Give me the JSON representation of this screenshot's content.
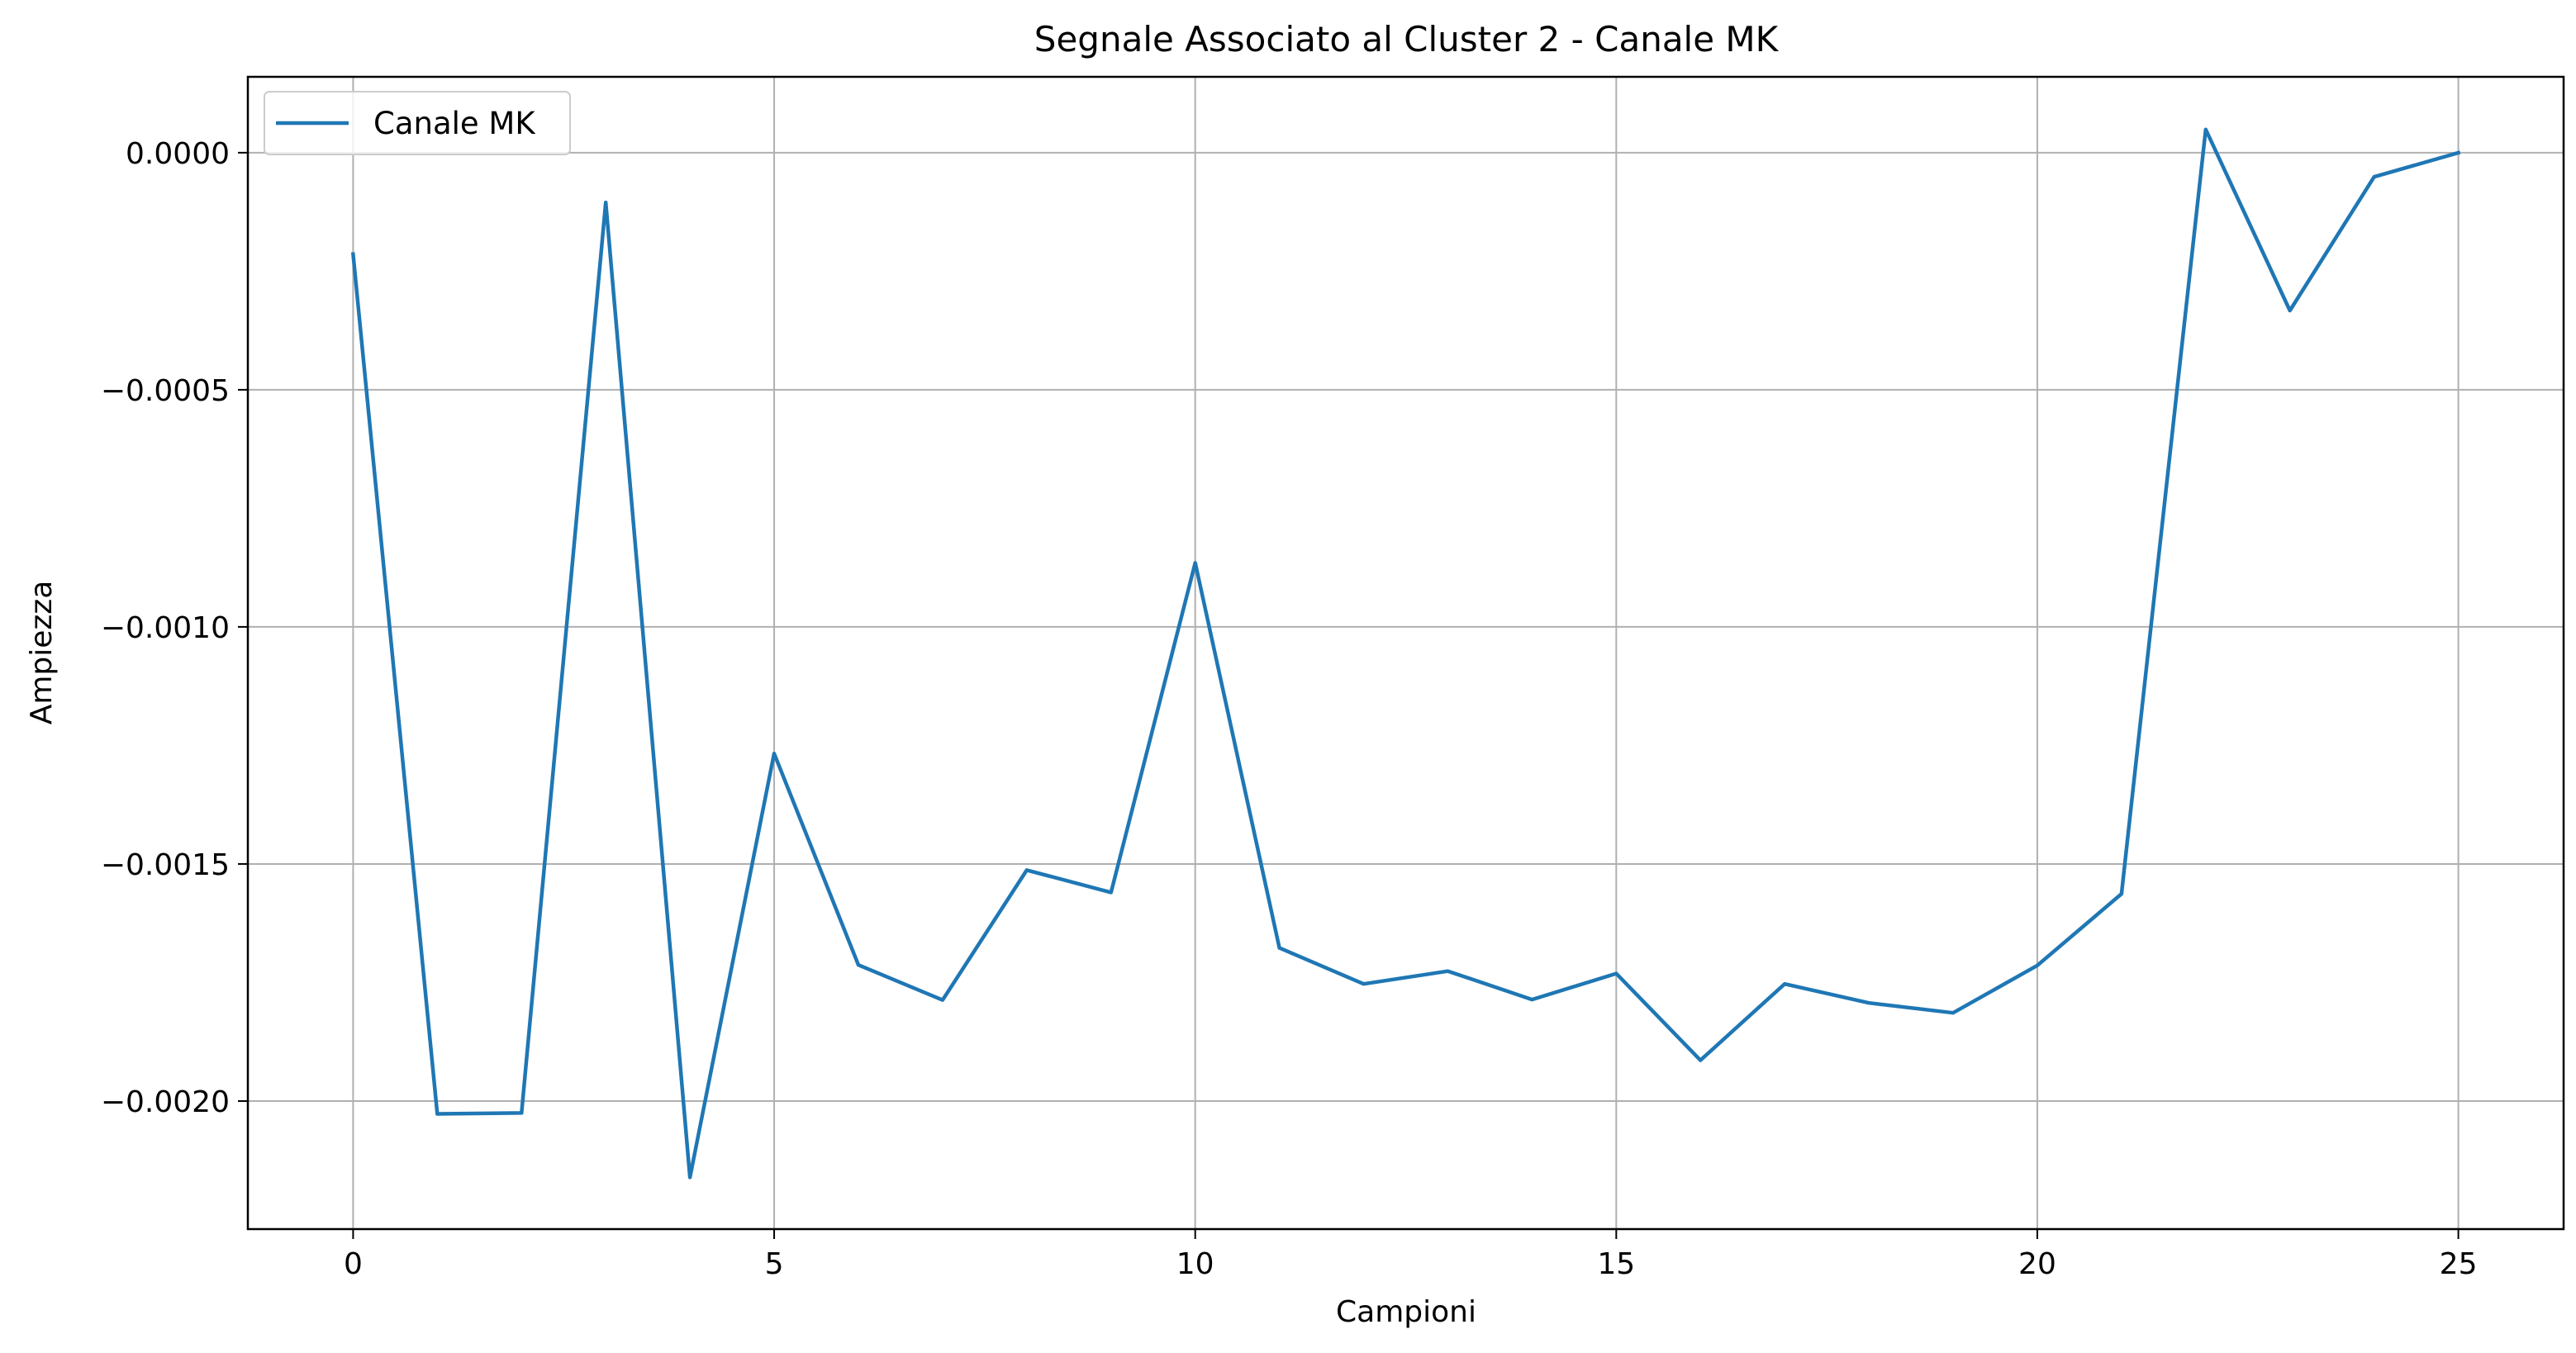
{
  "chart_data": {
    "type": "line",
    "title": "Segnale Associato al Cluster 2 - Canale MK",
    "xlabel": "Campioni",
    "ylabel": "Ampiezza",
    "xlim": [
      -1.25,
      26.25
    ],
    "ylim": [
      -0.00227,
      0.00016
    ],
    "xticks": [
      0,
      5,
      10,
      15,
      20,
      25
    ],
    "xtick_labels": [
      "0",
      "5",
      "10",
      "15",
      "20",
      "25"
    ],
    "yticks": [
      0.0,
      -0.0005,
      -0.001,
      -0.0015,
      -0.002
    ],
    "ytick_labels": [
      "0.0000",
      "−0.0005",
      "−0.0010",
      "−0.0015",
      "−0.0020"
    ],
    "grid": true,
    "legend_position": "upper-left",
    "series": [
      {
        "name": "Canale MK",
        "color": "#1f77b4",
        "x": [
          0,
          1,
          2,
          3,
          4,
          5,
          6,
          7,
          8,
          9,
          10,
          11,
          12,
          13,
          14,
          15,
          16,
          17,
          18,
          19,
          20,
          21,
          22,
          23,
          24,
          25
        ],
        "y": [
          -0.000214,
          -0.002027,
          -0.002025,
          -0.000105,
          -0.002161,
          -0.001267,
          -0.001713,
          -0.001787,
          -0.001513,
          -0.00156,
          -0.000865,
          -0.001677,
          -0.001753,
          -0.001726,
          -0.001786,
          -0.001731,
          -0.001914,
          -0.001753,
          -0.001793,
          -0.001814,
          -0.001714,
          -0.001563,
          4.9e-05,
          -0.000333,
          -5.1e-05,
          0.0
        ]
      }
    ]
  }
}
